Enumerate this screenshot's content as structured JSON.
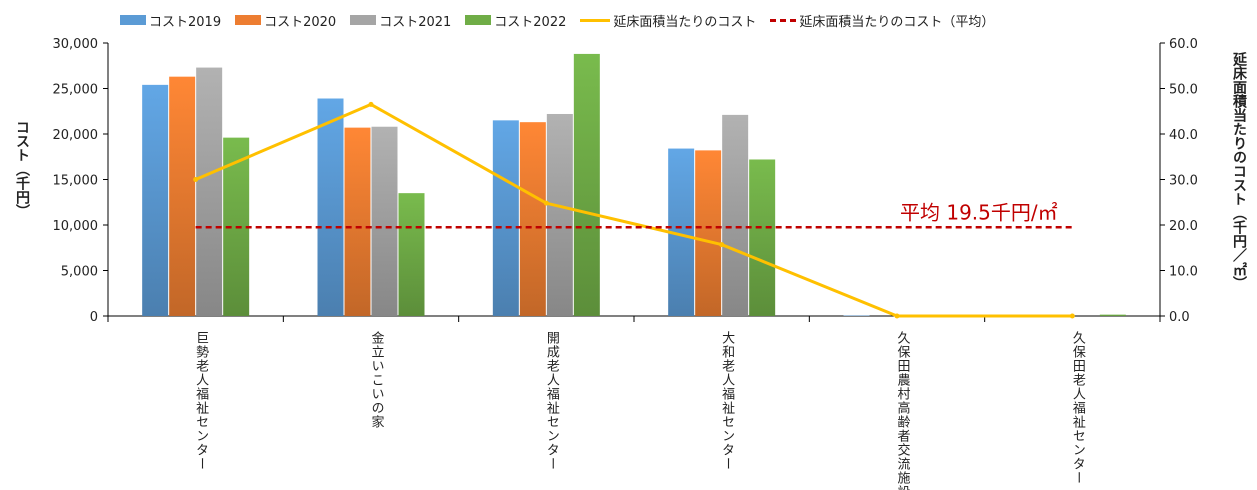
{
  "chart_data": {
    "type": "bar",
    "categories": [
      "巨勢老人福祉センター",
      "金立いこいの家",
      "開成老人福祉センター",
      "大和老人福祉センター",
      "久保田農村高齢者交流施設",
      "久保田老人福祉センター"
    ],
    "series": [
      {
        "name": "コスト2019",
        "type": "bar",
        "axis": "left",
        "color": "#5b9bd5",
        "values": [
          25400,
          23900,
          21500,
          18400,
          50,
          0
        ]
      },
      {
        "name": "コスト2020",
        "type": "bar",
        "axis": "left",
        "color": "#ed7d31",
        "values": [
          26300,
          20700,
          21300,
          18200,
          0,
          0
        ]
      },
      {
        "name": "コスト2021",
        "type": "bar",
        "axis": "left",
        "color": "#a5a5a5",
        "values": [
          27300,
          20800,
          22200,
          22100,
          0,
          0
        ]
      },
      {
        "name": "コスト2022",
        "type": "bar",
        "axis": "left",
        "color": "#70ad47",
        "values": [
          19600,
          13500,
          28800,
          17200,
          0,
          150
        ]
      },
      {
        "name": "延床面積当たりのコスト",
        "type": "line",
        "axis": "right",
        "color": "#ffc000",
        "values": [
          30.0,
          46.5,
          24.8,
          15.7,
          0.0,
          0.0
        ]
      },
      {
        "name": "延床面積当たりのコスト（平均）",
        "type": "line-dashed",
        "axis": "right",
        "color": "#c00000",
        "values": [
          19.5,
          19.5,
          19.5,
          19.5,
          19.5,
          19.5
        ]
      }
    ],
    "ylabel": "コスト（千円）",
    "y2label": "延床面積当たりのコスト（千円／㎡）",
    "ylim": [
      0,
      30000
    ],
    "y2lim": [
      0,
      60
    ],
    "yticks": [
      "0",
      "5,000",
      "10,000",
      "15,000",
      "20,000",
      "25,000",
      "30,000"
    ],
    "y2ticks": [
      "0.0",
      "10.0",
      "20.0",
      "30.0",
      "40.0",
      "50.0",
      "60.0"
    ],
    "annotation": "平均 19.5千円/㎡",
    "annotation_color": "#c00000",
    "grid": false,
    "legend_position": "top"
  }
}
